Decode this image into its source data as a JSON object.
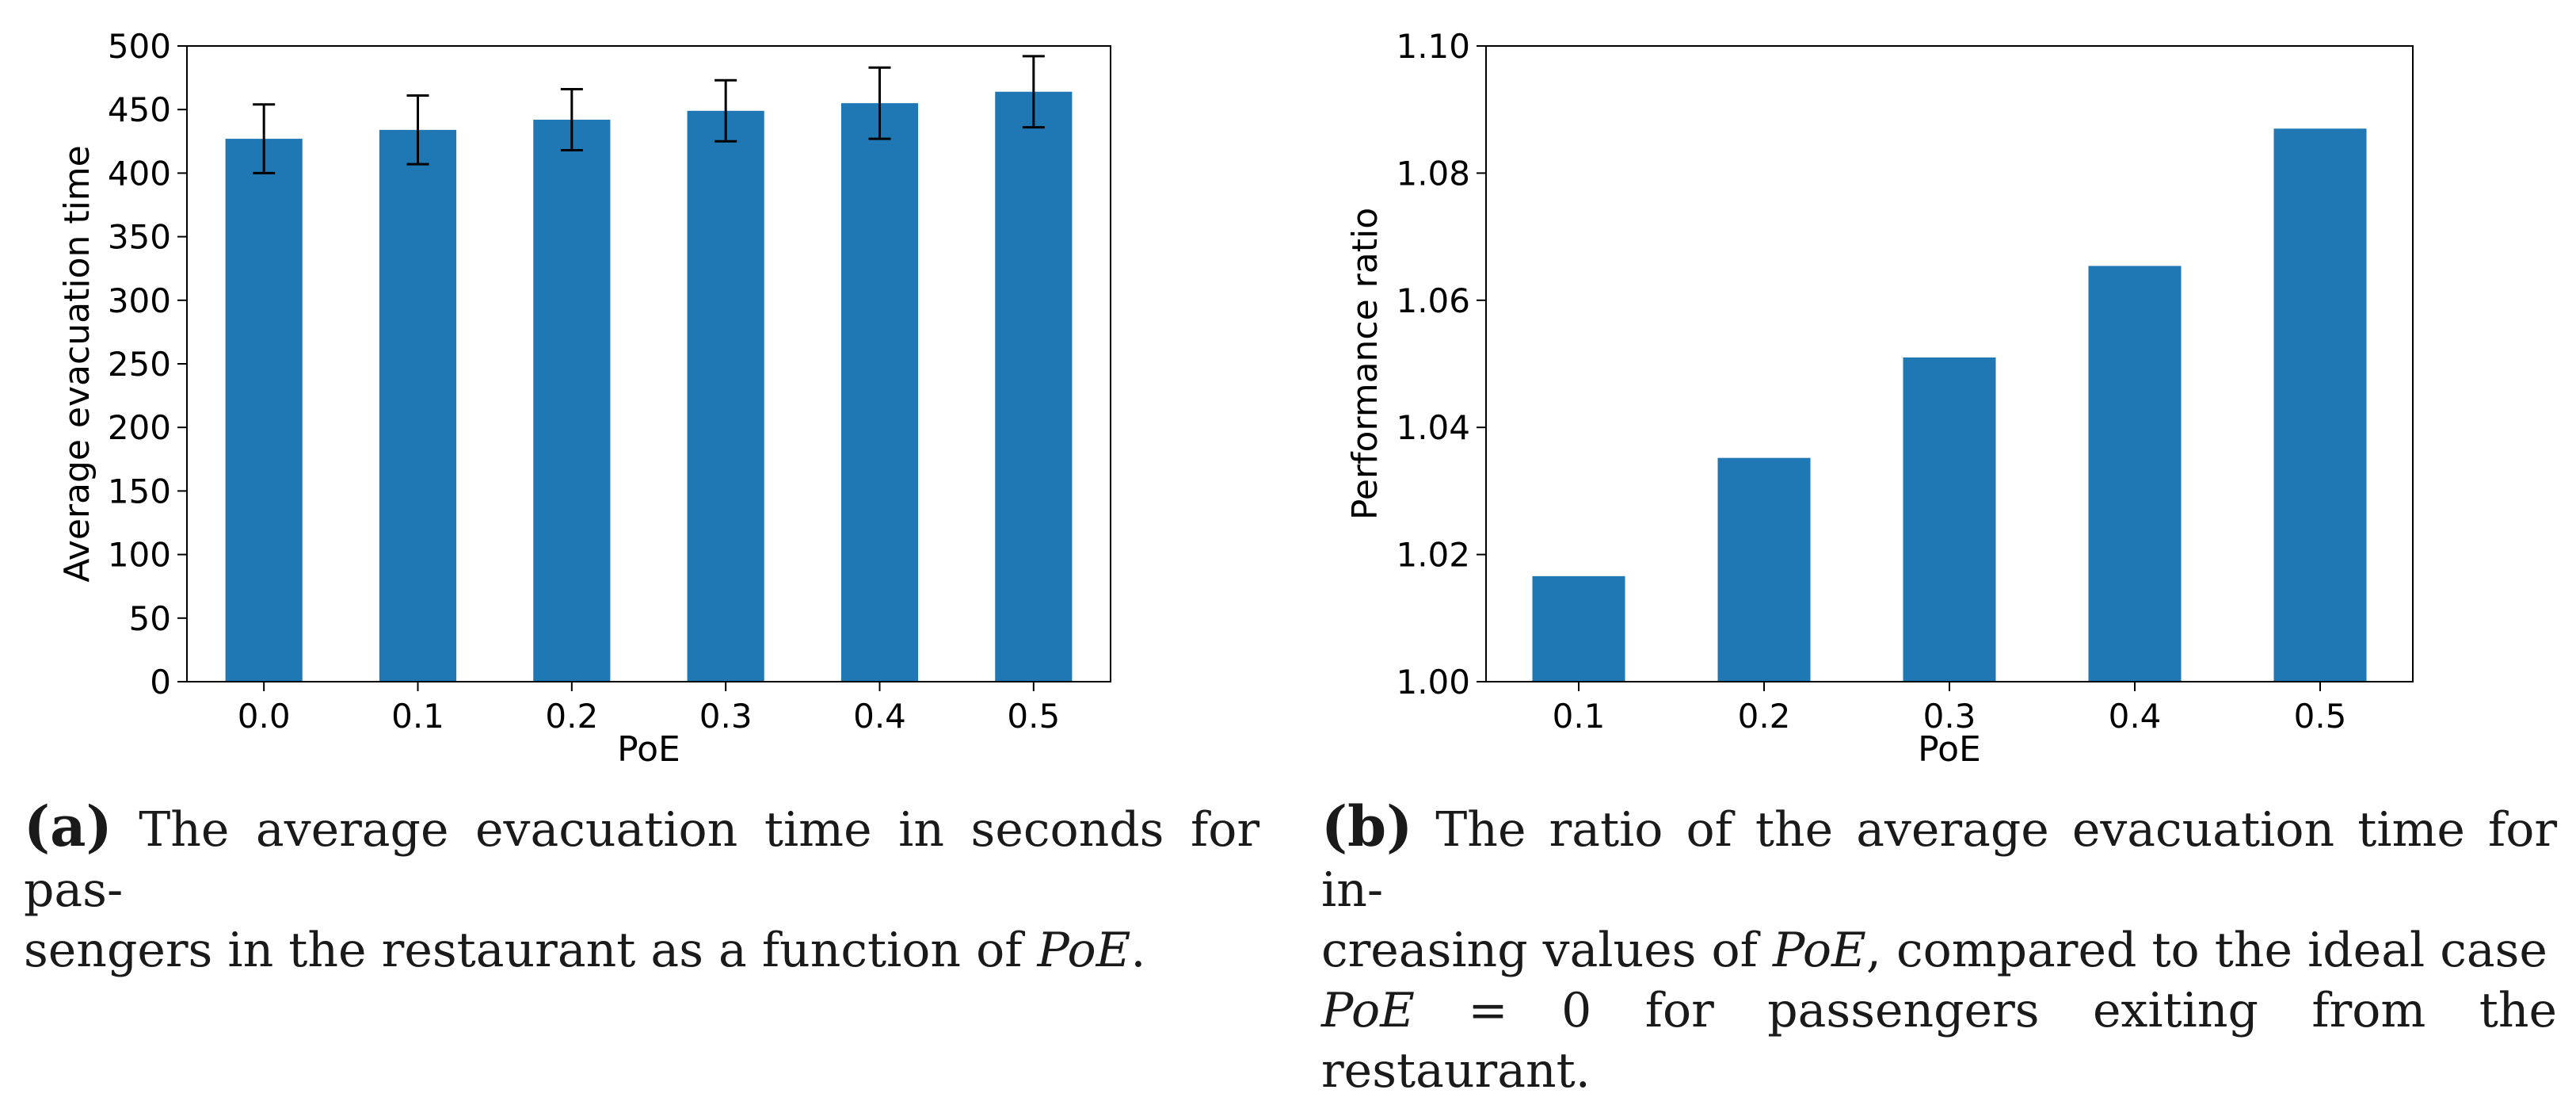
{
  "chart_data": [
    {
      "type": "bar",
      "panel": "a",
      "categories": [
        "0.0",
        "0.1",
        "0.2",
        "0.3",
        "0.4",
        "0.5"
      ],
      "values": [
        427,
        434,
        442,
        449,
        455,
        464
      ],
      "error": [
        27,
        27,
        24,
        24,
        28,
        28
      ],
      "xlabel": "PoE",
      "ylabel": "Average evacuation time",
      "ylim": [
        0,
        500
      ],
      "yticks": [
        0,
        50,
        100,
        150,
        200,
        250,
        300,
        350,
        400,
        450,
        500
      ],
      "ytick_labels": [
        "0",
        "50",
        "100",
        "150",
        "200",
        "250",
        "300",
        "350",
        "400",
        "450",
        "500"
      ],
      "color": "#1f77b4",
      "grid": false
    },
    {
      "type": "bar",
      "panel": "b",
      "categories": [
        "0.1",
        "0.2",
        "0.3",
        "0.4",
        "0.5"
      ],
      "values": [
        1.0166,
        1.0352,
        1.051,
        1.0654,
        1.087
      ],
      "xlabel": "PoE",
      "ylabel": "Performance ratio",
      "ylim": [
        1.0,
        1.1
      ],
      "yticks": [
        1.0,
        1.02,
        1.04,
        1.06,
        1.08,
        1.1
      ],
      "ytick_labels": [
        "1.00",
        "1.02",
        "1.04",
        "1.06",
        "1.08",
        "1.10"
      ],
      "color": "#1f77b4",
      "grid": false
    }
  ],
  "captions": {
    "a": {
      "label": "(a)",
      "line1": "The average evacuation time in seconds for pas-",
      "line2_text": "sengers in the restaurant as a function of ",
      "line2_var": "PoE",
      "line2_end": "."
    },
    "b": {
      "label": "(b)",
      "line1": "The ratio of the average evacuation time for in-",
      "line2_text": "creasing values of ",
      "line2_var": "PoE",
      "line2_end": ", compared to the ideal case",
      "line3_var": "PoE",
      "line3_eq": " = 0",
      "line3_end": " for passengers exiting from the restaurant."
    }
  }
}
